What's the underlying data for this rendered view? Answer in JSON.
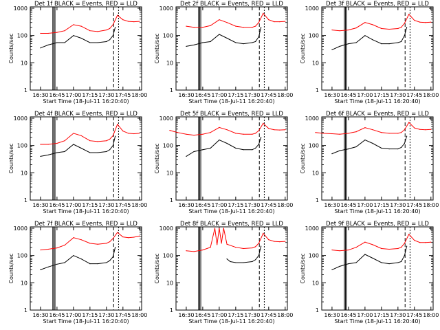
{
  "chart_data": {
    "type": "line",
    "ylabel": "Counts/sec",
    "xlabel": "Start Time (18-Jul-11 16:20:40)",
    "x_ticks": [
      "16:30",
      "16:45",
      "17:00",
      "17:15",
      "17:30",
      "17:45",
      "18:00"
    ],
    "y_ticks": [
      "1",
      "10",
      "100",
      "1000"
    ],
    "ylim": [
      1,
      1000
    ],
    "y_scale": "log",
    "colors": {
      "events": "#000000",
      "lld": "#ff0000"
    },
    "panels": [
      {
        "title": "Det 1f BLACK = Events, RED = LLD",
        "series": [
          {
            "name": "Events",
            "color": "#000000",
            "x": [
              "16:30",
              "16:37",
              "16:45",
              "16:52",
              "17:00",
              "17:07",
              "17:15",
              "17:22",
              "17:30",
              "17:33",
              "17:36",
              "17:38"
            ],
            "values": [
              35,
              45,
              55,
              55,
              100,
              80,
              55,
              55,
              60,
              70,
              100,
              200
            ]
          },
          {
            "name": "LLD",
            "color": "#ff0000",
            "x": [
              "16:30",
              "16:37",
              "16:45",
              "16:52",
              "17:00",
              "17:07",
              "17:15",
              "17:22",
              "17:30",
              "17:33",
              "17:36",
              "17:40",
              "17:45",
              "17:50",
              "17:55",
              "18:00"
            ],
            "values": [
              120,
              120,
              130,
              150,
              250,
              220,
              150,
              140,
              160,
              180,
              250,
              550,
              380,
              330,
              320,
              330
            ]
          }
        ]
      },
      {
        "title": "Det 2f BLACK = Events, RED = LLD",
        "series": [
          {
            "name": "Events",
            "color": "#000000",
            "x": [
              "16:30",
              "16:37",
              "16:45",
              "16:52",
              "17:00",
              "17:07",
              "17:15",
              "17:22",
              "17:30",
              "17:33",
              "17:36",
              "17:38"
            ],
            "values": [
              40,
              45,
              55,
              60,
              110,
              80,
              55,
              50,
              55,
              60,
              90,
              200
            ]
          },
          {
            "name": "LLD",
            "color": "#ff0000",
            "x": [
              "16:30",
              "16:37",
              "16:45",
              "16:52",
              "17:00",
              "17:07",
              "17:15",
              "17:22",
              "17:30",
              "17:33",
              "17:36",
              "17:40",
              "17:45",
              "17:50",
              "17:55",
              "18:00"
            ],
            "values": [
              220,
              200,
              200,
              230,
              380,
              300,
              220,
              200,
              200,
              220,
              300,
              650,
              380,
              320,
              320,
              330
            ]
          }
        ]
      },
      {
        "title": "Det 3f BLACK = Events, RED = LLD",
        "series": [
          {
            "name": "Events",
            "color": "#000000",
            "x": [
              "16:30",
              "16:37",
              "16:45",
              "16:52",
              "17:00",
              "17:07",
              "17:15",
              "17:22",
              "17:30",
              "17:33",
              "17:36",
              "17:38"
            ],
            "values": [
              30,
              40,
              50,
              55,
              100,
              70,
              50,
              50,
              55,
              60,
              100,
              200
            ]
          },
          {
            "name": "LLD",
            "color": "#ff0000",
            "x": [
              "16:30",
              "16:37",
              "16:45",
              "16:52",
              "17:00",
              "17:07",
              "17:15",
              "17:22",
              "17:30",
              "17:33",
              "17:36",
              "17:40",
              "17:45",
              "17:50",
              "17:55",
              "18:00"
            ],
            "values": [
              160,
              150,
              160,
              190,
              300,
              250,
              180,
              170,
              180,
              200,
              280,
              600,
              360,
              310,
              300,
              310
            ]
          }
        ]
      },
      {
        "title": "Det 4f BLACK = Events, RED = LLD",
        "series": [
          {
            "name": "Events",
            "color": "#000000",
            "x": [
              "16:30",
              "16:37",
              "16:45",
              "16:52",
              "17:00",
              "17:07",
              "17:15",
              "17:22",
              "17:30",
              "17:33",
              "17:36",
              "17:38"
            ],
            "values": [
              40,
              45,
              55,
              60,
              110,
              80,
              55,
              55,
              60,
              70,
              100,
              220
            ]
          },
          {
            "name": "LLD",
            "color": "#ff0000",
            "x": [
              "16:30",
              "16:37",
              "16:45",
              "16:52",
              "17:00",
              "17:07",
              "17:15",
              "17:22",
              "17:30",
              "17:33",
              "17:36",
              "17:40",
              "17:45",
              "17:50",
              "17:55",
              "18:00"
            ],
            "values": [
              110,
              110,
              120,
              150,
              280,
              230,
              150,
              140,
              150,
              170,
              230,
              600,
              340,
              280,
              270,
              280
            ]
          }
        ]
      },
      {
        "title": "Det 5f BLACK = Events, RED = LLD",
        "series": [
          {
            "name": "Events",
            "color": "#000000",
            "x": [
              "16:30",
              "16:37",
              "16:45",
              "16:52",
              "17:00",
              "17:07",
              "17:15",
              "17:22",
              "17:30",
              "17:33",
              "17:36",
              "17:38"
            ],
            "values": [
              40,
              60,
              70,
              80,
              160,
              120,
              80,
              70,
              70,
              80,
              110,
              200
            ]
          },
          {
            "name": "LLD",
            "color": "#ff0000",
            "x": [
              "16:15",
              "16:22",
              "16:30",
              "16:37",
              "16:45",
              "16:52",
              "17:00",
              "17:07",
              "17:15",
              "17:22",
              "17:30",
              "17:33",
              "17:36",
              "17:40",
              "17:45",
              "17:50",
              "17:55",
              "18:00"
            ],
            "values": [
              360,
              300,
              260,
              240,
              260,
              300,
              460,
              380,
              280,
              260,
              260,
              280,
              350,
              650,
              420,
              380,
              370,
              380
            ]
          }
        ]
      },
      {
        "title": "Det 6f BLACK = Events, RED = LLD",
        "series": [
          {
            "name": "Events",
            "color": "#000000",
            "x": [
              "16:30",
              "16:37",
              "16:45",
              "16:52",
              "17:00",
              "17:07",
              "17:15",
              "17:22",
              "17:30",
              "17:33",
              "17:36",
              "17:38"
            ],
            "values": [
              50,
              65,
              75,
              90,
              160,
              120,
              80,
              75,
              75,
              85,
              120,
              220
            ]
          },
          {
            "name": "LLD",
            "color": "#ff0000",
            "x": [
              "16:15",
              "16:22",
              "16:30",
              "16:37",
              "16:45",
              "16:52",
              "17:00",
              "17:07",
              "17:15",
              "17:22",
              "17:30",
              "17:33",
              "17:36",
              "17:40",
              "17:45",
              "17:50",
              "17:55",
              "18:00"
            ],
            "values": [
              300,
              280,
              270,
              260,
              280,
              320,
              450,
              380,
              300,
              280,
              280,
              300,
              380,
              700,
              440,
              390,
              380,
              390
            ]
          }
        ]
      },
      {
        "title": "Det 7f BLACK = Events, RED = LLD",
        "series": [
          {
            "name": "Events",
            "color": "#000000",
            "x": [
              "16:30",
              "16:37",
              "16:45",
              "16:52",
              "17:00",
              "17:07",
              "17:15",
              "17:22",
              "17:30",
              "17:33",
              "17:36",
              "17:38"
            ],
            "values": [
              30,
              38,
              48,
              55,
              100,
              75,
              50,
              50,
              55,
              65,
              90,
              200
            ]
          },
          {
            "name": "LLD",
            "color": "#ff0000",
            "x": [
              "16:30",
              "16:37",
              "16:45",
              "16:52",
              "17:00",
              "17:07",
              "17:15",
              "17:22",
              "17:30",
              "17:33",
              "17:36",
              "17:40",
              "17:45",
              "17:50",
              "17:55",
              "18:00"
            ],
            "values": [
              160,
              170,
              190,
              240,
              450,
              380,
              280,
              260,
              280,
              320,
              420,
              700,
              480,
              450,
              470,
              520
            ]
          }
        ]
      },
      {
        "title": "Det 8f BLACK = Events, RED = LLD",
        "series": [
          {
            "name": "Events",
            "color": "#000000",
            "x": [
              "17:07",
              "17:10",
              "17:15",
              "17:22",
              "17:30",
              "17:33",
              "17:36",
              "17:38"
            ],
            "values": [
              75,
              60,
              55,
              55,
              60,
              70,
              100,
              220
            ]
          },
          {
            "name": "LLD",
            "color": "#ff0000",
            "x": [
              "16:30",
              "16:37",
              "16:45",
              "16:52",
              "16:56",
              "16:58",
              "17:00",
              "17:02",
              "17:04",
              "17:07",
              "17:15",
              "17:22",
              "17:30",
              "17:33",
              "17:36",
              "17:40",
              "17:45",
              "17:50",
              "17:55",
              "18:00"
            ],
            "values": [
              150,
              140,
              160,
              200,
              1000,
              250,
              1000,
              280,
              1000,
              260,
              200,
              180,
              190,
              210,
              280,
              650,
              380,
              330,
              320,
              330
            ]
          }
        ]
      },
      {
        "title": "Det 9f BLACK = Events, RED = LLD",
        "series": [
          {
            "name": "Events",
            "color": "#000000",
            "x": [
              "16:30",
              "16:37",
              "16:45",
              "16:52",
              "17:00",
              "17:07",
              "17:15",
              "17:22",
              "17:30",
              "17:33",
              "17:36",
              "17:38"
            ],
            "values": [
              30,
              40,
              50,
              55,
              110,
              80,
              55,
              50,
              55,
              60,
              100,
              220
            ]
          },
          {
            "name": "LLD",
            "color": "#ff0000",
            "x": [
              "16:30",
              "16:37",
              "16:45",
              "16:52",
              "17:00",
              "17:07",
              "17:15",
              "17:22",
              "17:30",
              "17:33",
              "17:36",
              "17:40",
              "17:45",
              "17:50",
              "17:55",
              "18:00"
            ],
            "values": [
              160,
              150,
              160,
              200,
              310,
              250,
              180,
              170,
              180,
              200,
              280,
              600,
              360,
              300,
              300,
              310
            ]
          }
        ]
      }
    ]
  }
}
